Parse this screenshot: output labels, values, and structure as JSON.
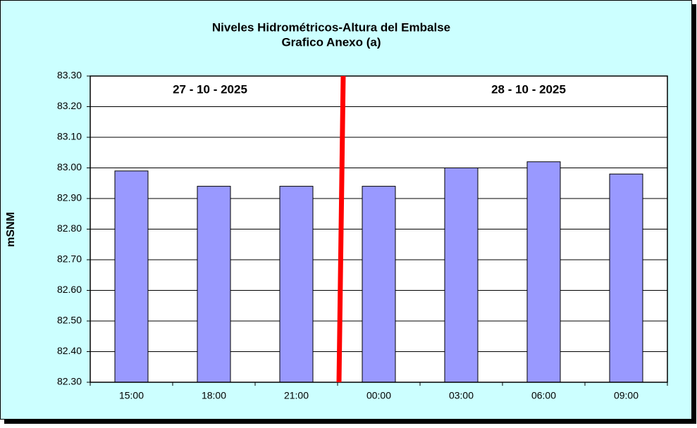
{
  "chart_data": {
    "type": "bar",
    "title": "Niveles Hidrométricos-Altura del Embalse",
    "subtitle": "Grafico Anexo (a)",
    "y_label": "mSNM",
    "annotations": [
      "27 - 10 - 2025",
      "28 - 10 - 2025"
    ],
    "categories": [
      "15:00",
      "18:00",
      "21:00",
      "00:00",
      "03:00",
      "06:00",
      "09:00"
    ],
    "values": [
      82.99,
      82.94,
      82.94,
      82.94,
      83.0,
      83.02,
      82.98
    ],
    "color": "#9999ff",
    "ylim": [
      82.3,
      83.3
    ],
    "yticks": [
      {
        "value": 82.3,
        "label": "82.30"
      },
      {
        "value": 82.4,
        "label": "82.40"
      },
      {
        "value": 82.5,
        "label": "82.50"
      },
      {
        "value": 82.6,
        "label": "82.60"
      },
      {
        "value": 82.7,
        "label": "82.70"
      },
      {
        "value": 82.8,
        "label": "82.80"
      },
      {
        "value": 82.9,
        "label": "82.90"
      },
      {
        "value": 83.0,
        "label": "83.00"
      },
      {
        "value": 83.1,
        "label": "83.10"
      },
      {
        "value": 83.2,
        "label": "83.20"
      },
      {
        "value": 83.3,
        "label": "83.30"
      }
    ],
    "grid": true
  }
}
